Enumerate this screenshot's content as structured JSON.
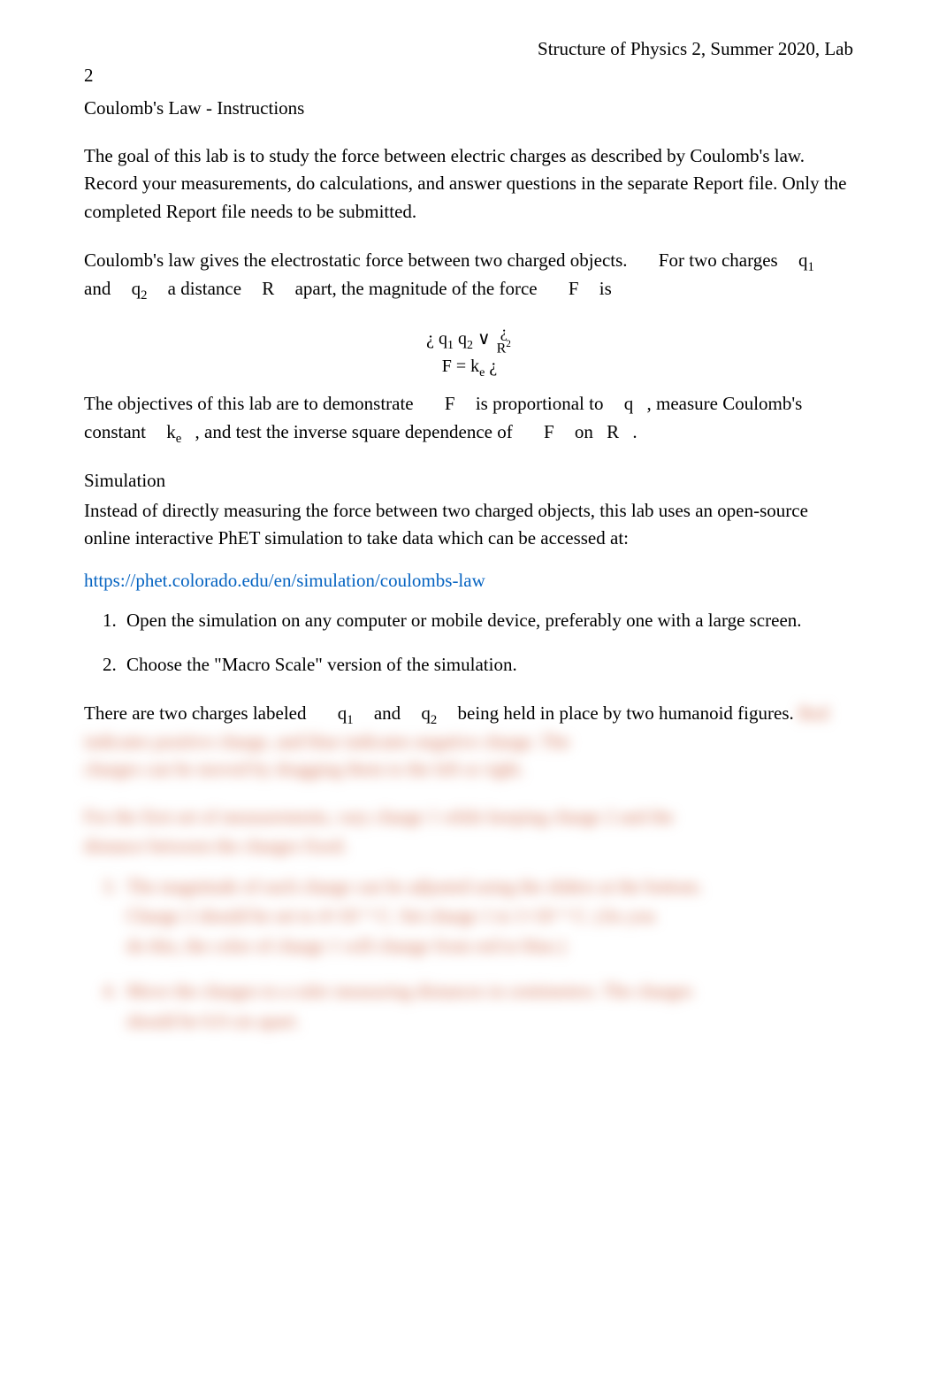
{
  "header": {
    "running_head": "Structure of Physics 2, Summer 2020, Lab",
    "page_number": "2"
  },
  "title": "Coulomb's Law - Instructions",
  "para_intro": "The goal of this lab is to study the force between electric charges as described by Coulomb's law. Record your measurements, do calculations, and answer questions in the separate Report file. Only the completed Report file needs to be submitted.",
  "para_law": {
    "lead": "Coulomb's law gives the electrostatic force between two charged objects.",
    "tail1": "For two charges",
    "and": "and",
    "mid": "a distance",
    "tail2": "apart, the magnitude of the force",
    "is": "is"
  },
  "vars": {
    "q1": "q",
    "q1_sub": "1",
    "q2": "q",
    "q2_sub": "2",
    "R": "R",
    "F": "F",
    "ke": "k",
    "ke_sub": "e",
    "q": "q"
  },
  "equation": {
    "line1_pre": "¿",
    "line1_q1": "q",
    "line1_q1_sub": "1",
    "line1_q2": "q",
    "line1_q2_sub": "2",
    "line1_or": "∨",
    "frac_num": "¿",
    "frac_den": "R",
    "frac_den_exp": "2",
    "line2_F": "F",
    "line2_eq": "=",
    "line2_k": "k",
    "line2_k_sub": "e",
    "line2_post": "¿"
  },
  "para_obj": {
    "a": "The objectives of this lab are to demonstrate",
    "b": "is proportional to",
    "c": ", measure Coulomb's constant",
    "d": ", and test the inverse square dependence of",
    "on": "on",
    "dot": "."
  },
  "simulation": {
    "head": "Simulation",
    "body": "Instead of directly measuring the force between two charged objects, this lab uses an open-source online interactive PhET simulation to take data which can be accessed at:",
    "link_text": "https://phet.colorado.edu/en/simulation/coulombs-law",
    "link_href": "https://phet.colorado.edu/en/simulation/coulombs-law"
  },
  "steps": [
    "Open the simulation on any computer or mobile device, preferably one with a large screen.",
    "Choose the \"Macro Scale\" version of the simulation."
  ],
  "para_charges": {
    "a": "There are two charges labeled",
    "b": "and",
    "c": "being held in place by two humanoid figures."
  },
  "blurred": {
    "line1": "Red indicates positive charge, and blue indicates negative charge.  The",
    "line2": "charges can be moved by dragging them to the left or right.",
    "para2a": "For the first set of measurements, vary charge 1 while keeping charge 2 and the",
    "para2b": "distance between the charges fixed.",
    "item3a": "The magnitude of each charge can be adjusted using the sliders at the bottom.",
    "item3b": "Charge 2 should be set to   4×10⁻⁶ C.   Set charge 1 to   1×10⁻⁶ C.   (As you",
    "item3c": "do this, the color of charge 1 will change from red to blue.)",
    "item4a": "Move the charges to a ruler measuring distances in centimeters.  The charges",
    "item4b": "should be 6.0 cm apart."
  },
  "colors": {
    "text": "#000000",
    "link": "#0563c1",
    "blur_red": "#d06a4a",
    "background": "#ffffff"
  }
}
